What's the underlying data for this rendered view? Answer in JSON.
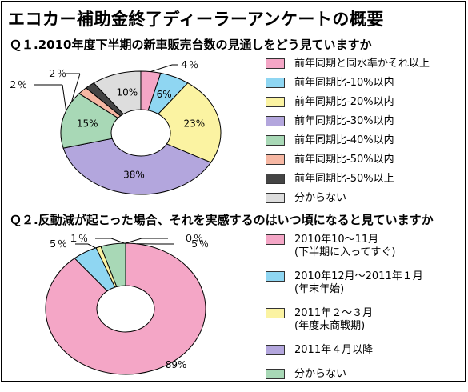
{
  "title": "エコカー補助金終了ディーラーアンケートの概要",
  "q1": {
    "title": "Ｑ１.2010年度下半期の新車販売台数の見通しをどう見ていますか",
    "legend": [
      {
        "label": "前年同期と同水準かそれ以上",
        "color": "#f4a6c6"
      },
      {
        "label": "前年同期比-10%以内",
        "color": "#8fd6f2"
      },
      {
        "label": "前年同期比-20%以内",
        "color": "#fbf3a2"
      },
      {
        "label": "前年同期比-30%以内",
        "color": "#b3a6dd"
      },
      {
        "label": "前年同期比-40%以内",
        "color": "#a8d8b6"
      },
      {
        "label": "前年同期比-50%以内",
        "color": "#f6b7a3"
      },
      {
        "label": "前年同期比-50%以上",
        "color": "#444444"
      },
      {
        "label": "分からない",
        "color": "#dddddd"
      }
    ]
  },
  "q2": {
    "title": "Ｑ２.反動減が起こった場合、それを実感するのはいつ頃になると見ていますか",
    "legend": [
      {
        "line1": "2010年10～11月",
        "line2": "(下半期に入ってすぐ)",
        "color": "#f4a6c6"
      },
      {
        "line1": "2010年12月～2011年１月",
        "line2": "(年末年始)",
        "color": "#8fd6f2"
      },
      {
        "line1": "2011年２～３月",
        "line2": "(年度末商戦期)",
        "color": "#fbf3a2"
      },
      {
        "line1": "2011年４月以降",
        "line2": "",
        "color": "#b3a6dd"
      },
      {
        "line1": "分からない",
        "line2": "",
        "color": "#a8d8b6"
      }
    ]
  },
  "chart_data": [
    {
      "type": "pie",
      "title": "Ｑ１.2010年度下半期の新車販売台数の見通しをどう見ていますか",
      "categories": [
        "前年同期と同水準かそれ以上",
        "前年同期比-10%以内",
        "前年同期比-20%以内",
        "前年同期比-30%以内",
        "前年同期比-40%以内",
        "前年同期比-50%以内",
        "前年同期比-50%以上",
        "分からない"
      ],
      "values": [
        4,
        6,
        23,
        38,
        15,
        2,
        2,
        10
      ],
      "labels": [
        "４％",
        "6%",
        "23%",
        "38%",
        "15%",
        "２％",
        "２％",
        "10%"
      ],
      "colors": [
        "#f4a6c6",
        "#8fd6f2",
        "#fbf3a2",
        "#b3a6dd",
        "#a8d8b6",
        "#f6b7a3",
        "#444444",
        "#dddddd"
      ],
      "legend_position": "right"
    },
    {
      "type": "pie",
      "title": "Ｑ２.反動減が起こった場合、それを実感するのはいつ頃になると見ていますか",
      "categories": [
        "2010年10～11月(下半期に入ってすぐ)",
        "2010年12月～2011年１月(年末年始)",
        "2011年２～３月(年度末商戦期)",
        "2011年４月以降",
        "分からない"
      ],
      "values": [
        89,
        5,
        1,
        0,
        5
      ],
      "labels": [
        "89%",
        "５％",
        "１％",
        "０％",
        "５％"
      ],
      "colors": [
        "#f4a6c6",
        "#8fd6f2",
        "#fbf3a2",
        "#b3a6dd",
        "#a8d8b6"
      ],
      "legend_position": "right"
    }
  ]
}
